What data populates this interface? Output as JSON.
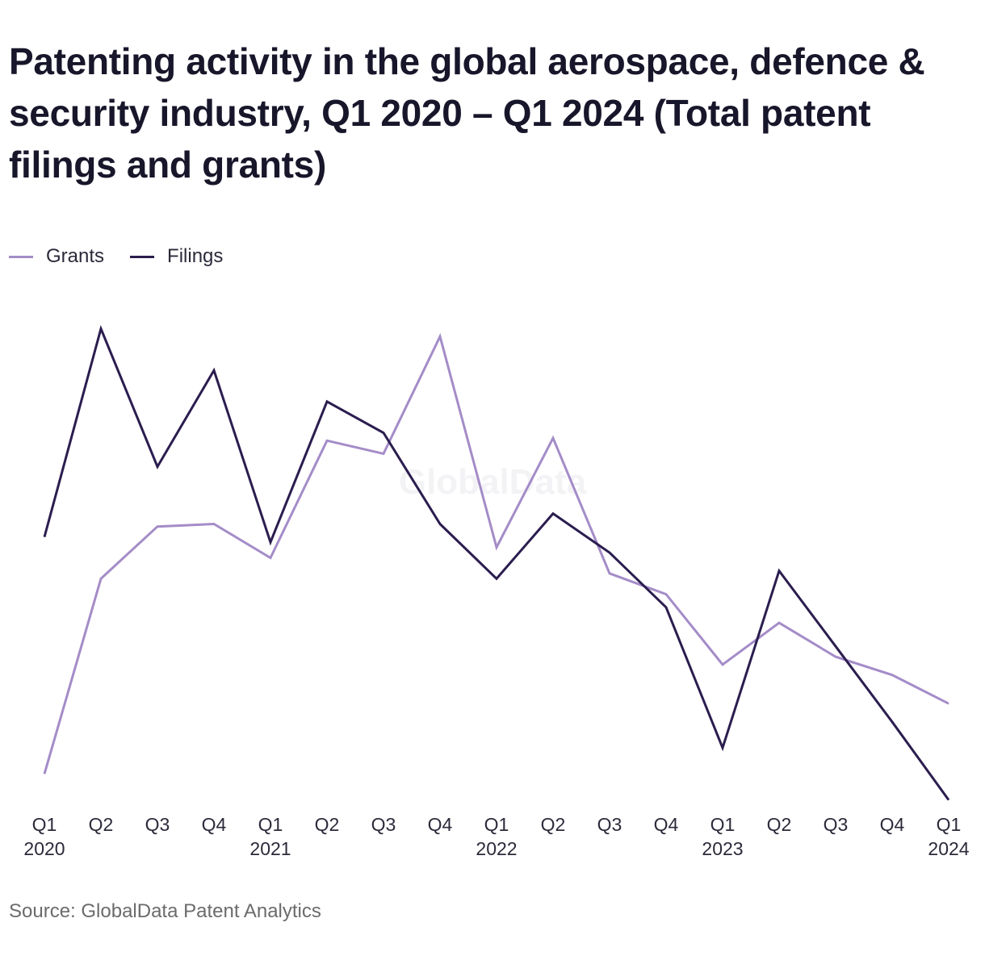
{
  "chart_data": {
    "type": "line",
    "title": "Patenting activity in the global aerospace, defence & security industry, Q1 2020 – Q1 2024 (Total patent filings and grants)",
    "watermark": "GlobalData",
    "source": "Source: GlobalData Patent Analytics",
    "categories": [
      "Q1 2020",
      "Q2 2020",
      "Q3 2020",
      "Q4 2020",
      "Q1 2021",
      "Q2 2021",
      "Q3 2021",
      "Q4 2021",
      "Q1 2022",
      "Q2 2022",
      "Q3 2022",
      "Q4 2022",
      "Q1 2023",
      "Q2 2023",
      "Q3 2023",
      "Q4 2023",
      "Q1 2024"
    ],
    "x_tick_quarters": [
      "Q1",
      "Q2",
      "Q3",
      "Q4",
      "Q1",
      "Q2",
      "Q3",
      "Q4",
      "Q1",
      "Q2",
      "Q3",
      "Q4",
      "Q1",
      "Q2",
      "Q3",
      "Q4",
      "Q1"
    ],
    "x_tick_years": [
      "2020",
      "",
      "",
      "",
      "2021",
      "",
      "",
      "",
      "2022",
      "",
      "",
      "",
      "2023",
      "",
      "",
      "",
      "2024"
    ],
    "series": [
      {
        "name": "Grants",
        "color": "#a48cc8",
        "values": [
          2.5,
          10.0,
          12.0,
          12.1,
          10.8,
          15.3,
          14.8,
          19.3,
          11.2,
          15.4,
          10.2,
          9.4,
          6.7,
          8.3,
          7.0,
          6.3,
          5.2
        ]
      },
      {
        "name": "Filings",
        "color": "#2b1d4f",
        "values": [
          11.6,
          19.6,
          14.3,
          18.0,
          11.4,
          16.8,
          15.6,
          12.1,
          10.0,
          12.5,
          11.0,
          8.9,
          3.5,
          10.3,
          7.4,
          4.5,
          1.5
        ]
      }
    ],
    "xlabel": "",
    "ylabel": "",
    "ylim": [
      0,
      22
    ],
    "grid": false,
    "legend_position": "top-left"
  }
}
